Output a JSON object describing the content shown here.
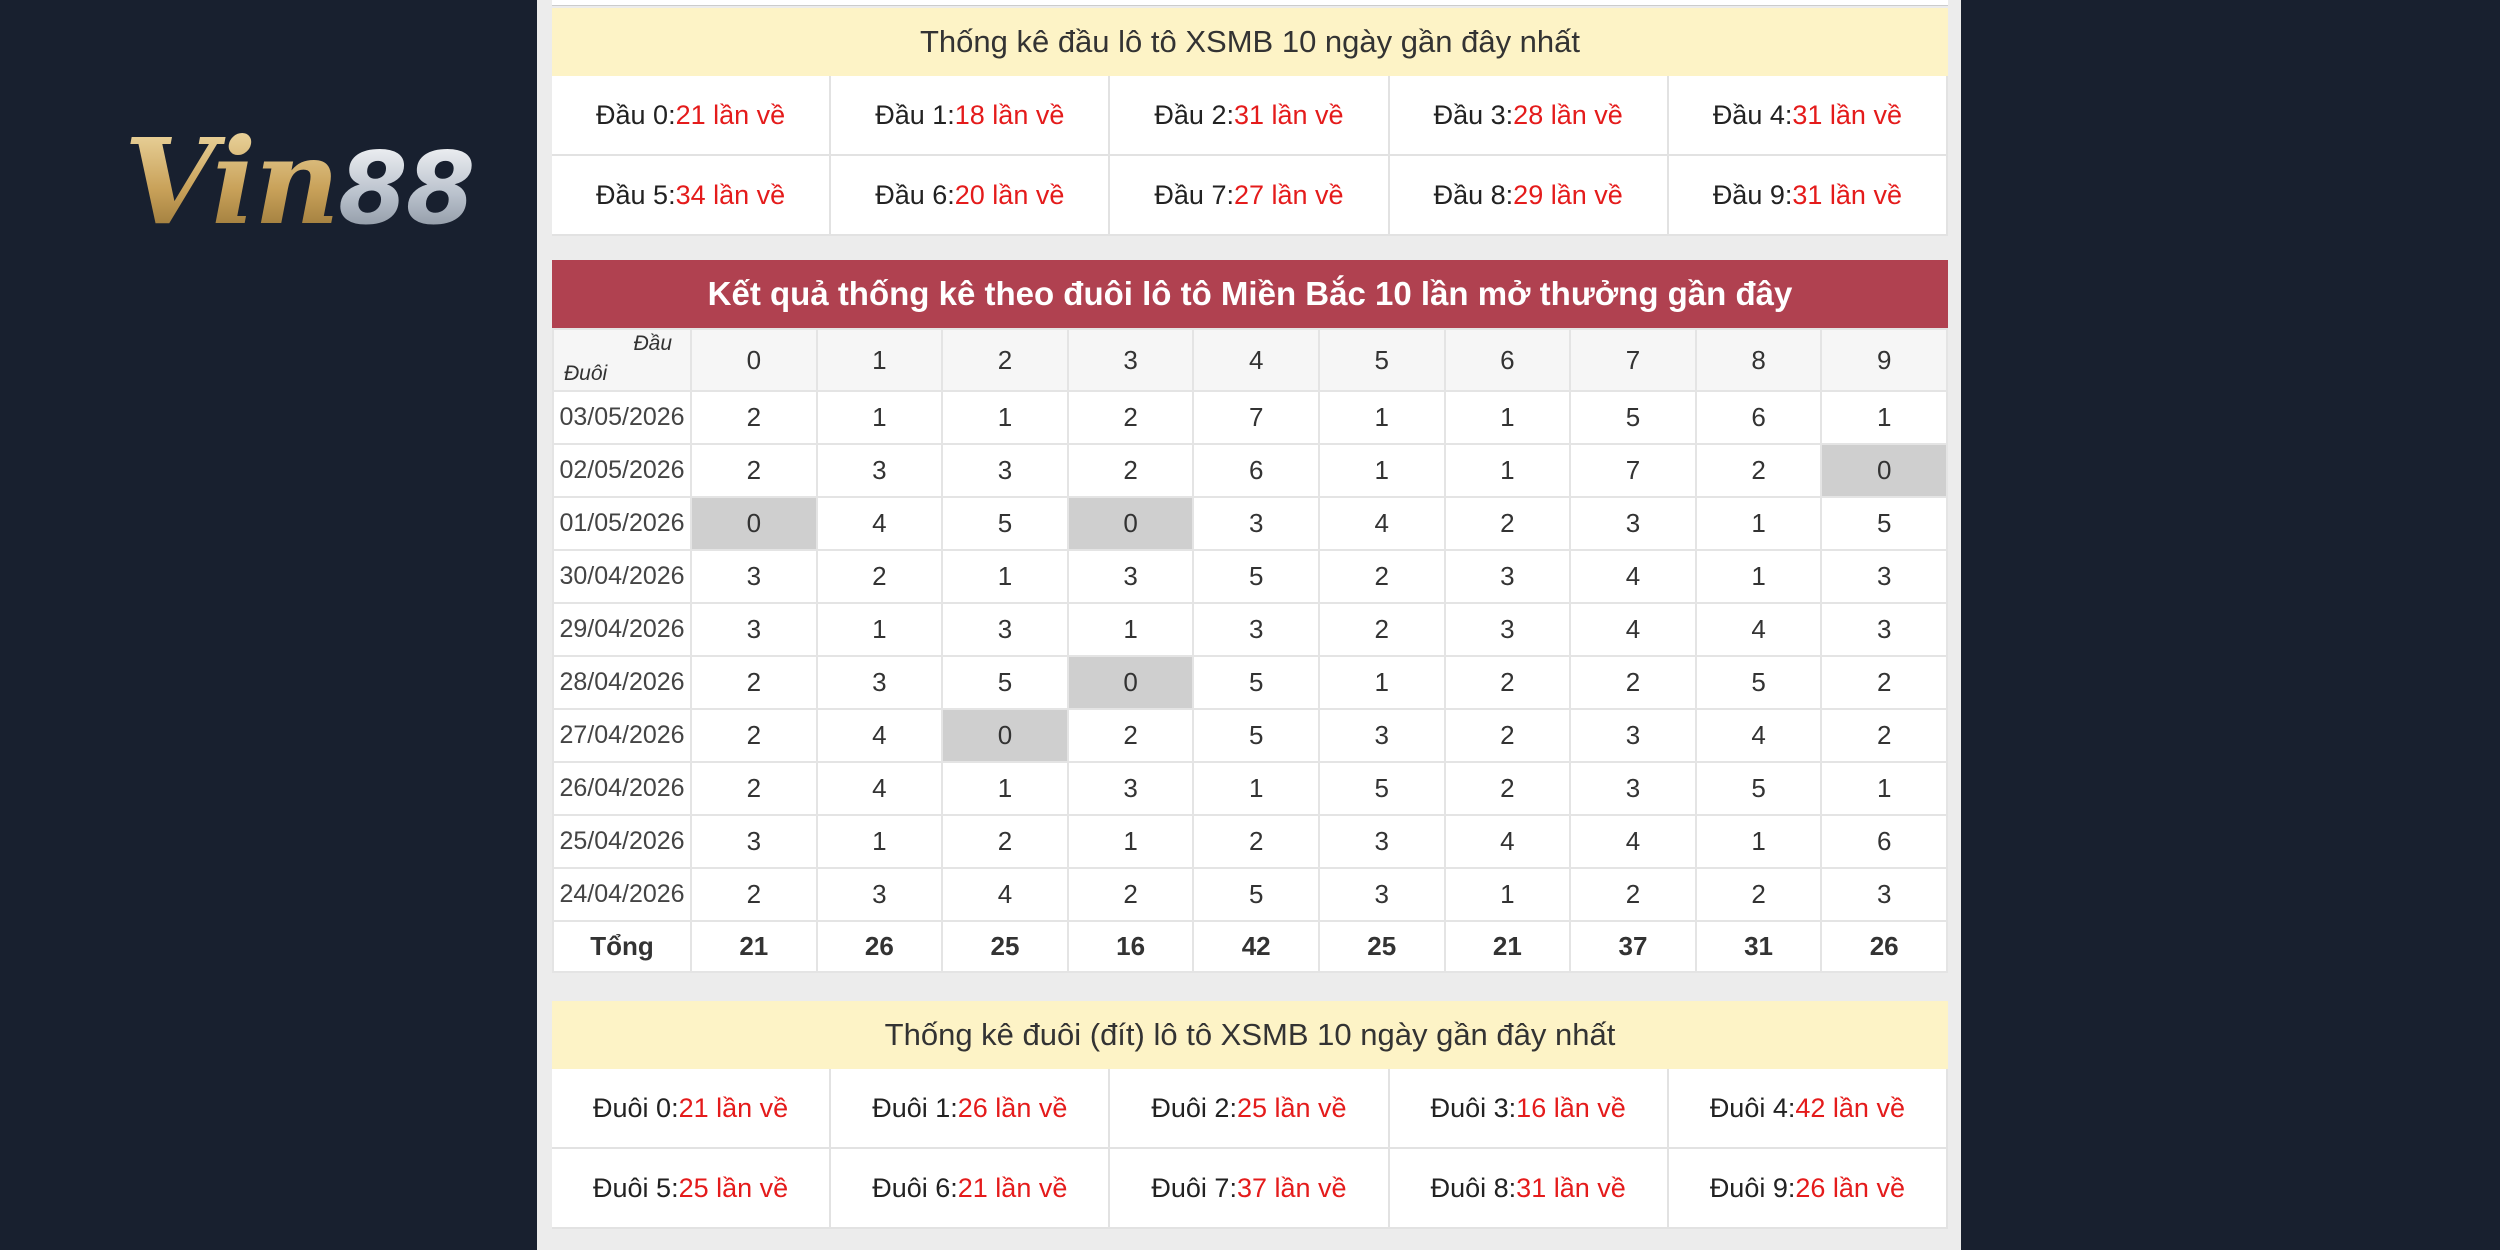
{
  "logo": {
    "part1": "Vin",
    "part2": "88"
  },
  "head_stats": {
    "title": "Thống kê đầu lô tô XSMB 10 ngày gần đây nhất",
    "items": [
      {
        "label": "Đầu 0:",
        "count": "21 lần về"
      },
      {
        "label": "Đầu 1:",
        "count": "18 lần về"
      },
      {
        "label": "Đầu 2:",
        "count": "31 lần về"
      },
      {
        "label": "Đầu 3:",
        "count": "28 lần về"
      },
      {
        "label": "Đầu 4:",
        "count": "31 lần về"
      },
      {
        "label": "Đầu 5:",
        "count": "34 lần về"
      },
      {
        "label": "Đầu 6:",
        "count": "20 lần về"
      },
      {
        "label": "Đầu 7:",
        "count": "27 lần về"
      },
      {
        "label": "Đầu 8:",
        "count": "29 lần về"
      },
      {
        "label": "Đầu 9:",
        "count": "31 lần về"
      }
    ]
  },
  "table": {
    "title": "Kết quả thống kê theo đuôi lô tô Miền Bắc 10 lần mở thưởng gần đây",
    "corner_top": "Đầu",
    "corner_bottom": "Đuôi",
    "columns": [
      "0",
      "1",
      "2",
      "3",
      "4",
      "5",
      "6",
      "7",
      "8",
      "9"
    ],
    "rows": [
      {
        "date": "03/05/2026",
        "values": [
          "2",
          "1",
          "1",
          "2",
          "7",
          "1",
          "1",
          "5",
          "6",
          "1"
        ]
      },
      {
        "date": "02/05/2026",
        "values": [
          "2",
          "3",
          "3",
          "2",
          "6",
          "1",
          "1",
          "7",
          "2",
          "0"
        ]
      },
      {
        "date": "01/05/2026",
        "values": [
          "0",
          "4",
          "5",
          "0",
          "3",
          "4",
          "2",
          "3",
          "1",
          "5"
        ]
      },
      {
        "date": "30/04/2026",
        "values": [
          "3",
          "2",
          "1",
          "3",
          "5",
          "2",
          "3",
          "4",
          "1",
          "3"
        ]
      },
      {
        "date": "29/04/2026",
        "values": [
          "3",
          "1",
          "3",
          "1",
          "3",
          "2",
          "3",
          "4",
          "4",
          "3"
        ]
      },
      {
        "date": "28/04/2026",
        "values": [
          "2",
          "3",
          "5",
          "0",
          "5",
          "1",
          "2",
          "2",
          "5",
          "2"
        ]
      },
      {
        "date": "27/04/2026",
        "values": [
          "2",
          "4",
          "0",
          "2",
          "5",
          "3",
          "2",
          "3",
          "4",
          "2"
        ]
      },
      {
        "date": "26/04/2026",
        "values": [
          "2",
          "4",
          "1",
          "3",
          "1",
          "5",
          "2",
          "3",
          "5",
          "1"
        ]
      },
      {
        "date": "25/04/2026",
        "values": [
          "3",
          "1",
          "2",
          "1",
          "2",
          "3",
          "4",
          "4",
          "1",
          "6"
        ]
      },
      {
        "date": "24/04/2026",
        "values": [
          "2",
          "3",
          "4",
          "2",
          "5",
          "3",
          "1",
          "2",
          "2",
          "3"
        ]
      }
    ],
    "total_label": "Tổng",
    "totals": [
      "21",
      "26",
      "25",
      "16",
      "42",
      "25",
      "21",
      "37",
      "31",
      "26"
    ]
  },
  "tail_stats": {
    "title": "Thống kê đuôi (đít) lô tô XSMB 10 ngày gần đây nhất",
    "items": [
      {
        "label": "Đuôi 0:",
        "count": "21 lần về"
      },
      {
        "label": "Đuôi 1:",
        "count": "26 lần về"
      },
      {
        "label": "Đuôi 2:",
        "count": "25 lần về"
      },
      {
        "label": "Đuôi 3:",
        "count": "16 lần về"
      },
      {
        "label": "Đuôi 4:",
        "count": "42 lần về"
      },
      {
        "label": "Đuôi 5:",
        "count": "25 lần về"
      },
      {
        "label": "Đuôi 6:",
        "count": "21 lần về"
      },
      {
        "label": "Đuôi 7:",
        "count": "37 lần về"
      },
      {
        "label": "Đuôi 8:",
        "count": "31 lần về"
      },
      {
        "label": "Đuôi 9:",
        "count": "26 lần về"
      }
    ]
  }
}
